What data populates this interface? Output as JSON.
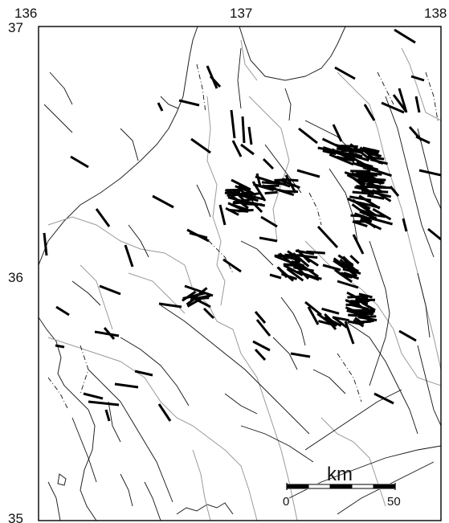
{
  "map": {
    "longitude_labels": [
      "136",
      "137",
      "138"
    ],
    "latitude_labels": [
      "37",
      "36",
      "35"
    ],
    "scale_bar": {
      "unit_label": "km",
      "start_label": "0",
      "end_label": "50",
      "segment_count": 5
    },
    "colors": {
      "frame": "#000000",
      "stress_axis": "#000000",
      "fault": "#111111",
      "boundary": "#9a9a9a",
      "coast": "#222222"
    }
  }
}
